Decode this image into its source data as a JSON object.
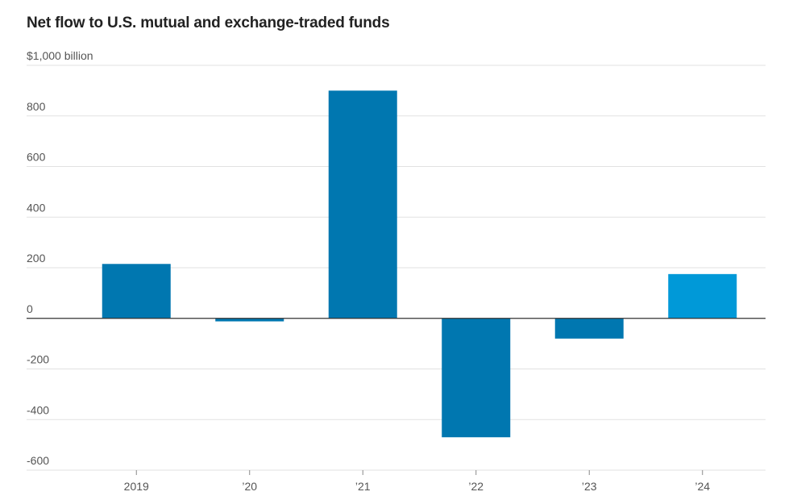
{
  "colors": {
    "bar": "#0077b0",
    "highlight": "#0099d8",
    "grid": "#e2e2e2",
    "zero": "#333333"
  },
  "chart_data": {
    "type": "bar",
    "title": "Net flow to U.S. mutual and exchange-traded funds",
    "ylabel": "$1,000 billion",
    "categories": [
      "2019",
      "’20",
      "’21",
      "’22",
      "’23",
      "’24"
    ],
    "values": [
      215,
      -12,
      900,
      -470,
      -80,
      175
    ],
    "highlight_index": 5,
    "ylim": [
      -600,
      1000
    ],
    "yticks": [
      1000,
      800,
      600,
      400,
      200,
      0,
      -200,
      -400,
      -600
    ],
    "ytick_labels": [
      "$1,000 billion",
      "800",
      "600",
      "400",
      "200",
      "0",
      "-200",
      "-400",
      "-600"
    ],
    "grid": true
  }
}
